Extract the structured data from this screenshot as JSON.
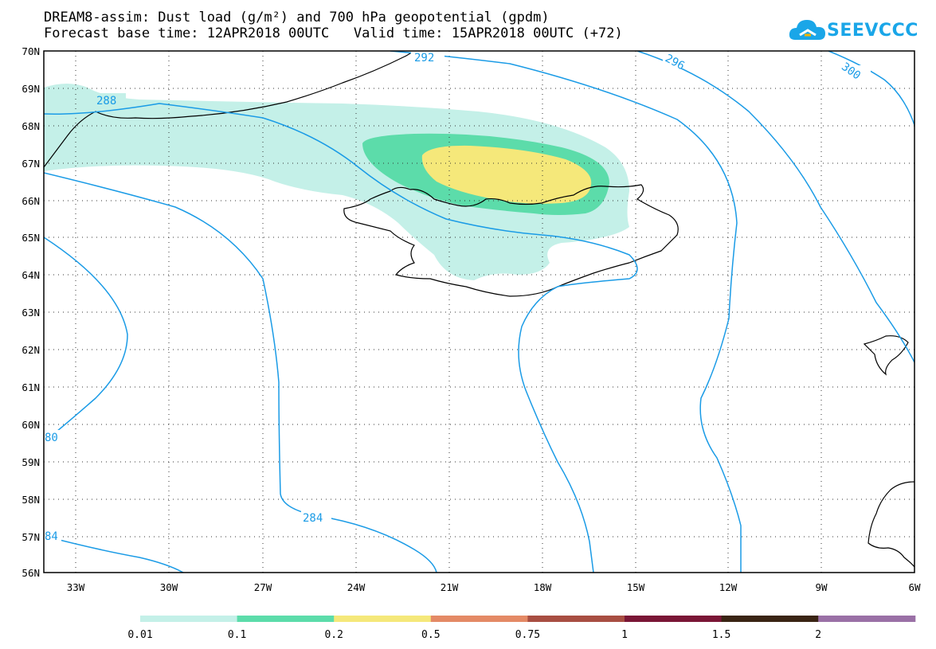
{
  "header": {
    "title_line1": "DREAM8-assim: Dust load (g/m²) and 700 hPa geopotential (gpdm)",
    "title_line2": "Forecast base time: 12APR2018 00UTC   Valid time: 15APR2018 00UTC (+72)"
  },
  "logo": {
    "text": "SEEVCCC",
    "icon": "cloud-icon",
    "color": "#1aa6e8"
  },
  "axes": {
    "lat_labels": [
      "70N",
      "69N",
      "68N",
      "67N",
      "66N",
      "65N",
      "64N",
      "63N",
      "62N",
      "61N",
      "60N",
      "59N",
      "58N",
      "57N",
      "56N"
    ],
    "lon_labels": [
      "33W",
      "30W",
      "27W",
      "24W",
      "21W",
      "18W",
      "15W",
      "12W",
      "9W",
      "6W"
    ]
  },
  "contours": {
    "color": "#1a9be6",
    "labels": [
      "288",
      "292",
      "296",
      "300",
      "284",
      "80",
      "84"
    ]
  },
  "colorbar": {
    "colors": [
      "#c4f0e8",
      "#5cdcaa",
      "#f5e87a",
      "#e48a66",
      "#a84e42",
      "#7a1636",
      "#3a2414",
      "#9a70a6"
    ],
    "labels": [
      "0.01",
      "0.1",
      "0.2",
      "0.5",
      "0.75",
      "1",
      "1.5",
      "2"
    ]
  },
  "dust_colors": {
    "low": "#c4f0e8",
    "mid": "#5cdcaa",
    "high": "#f5e87a"
  }
}
